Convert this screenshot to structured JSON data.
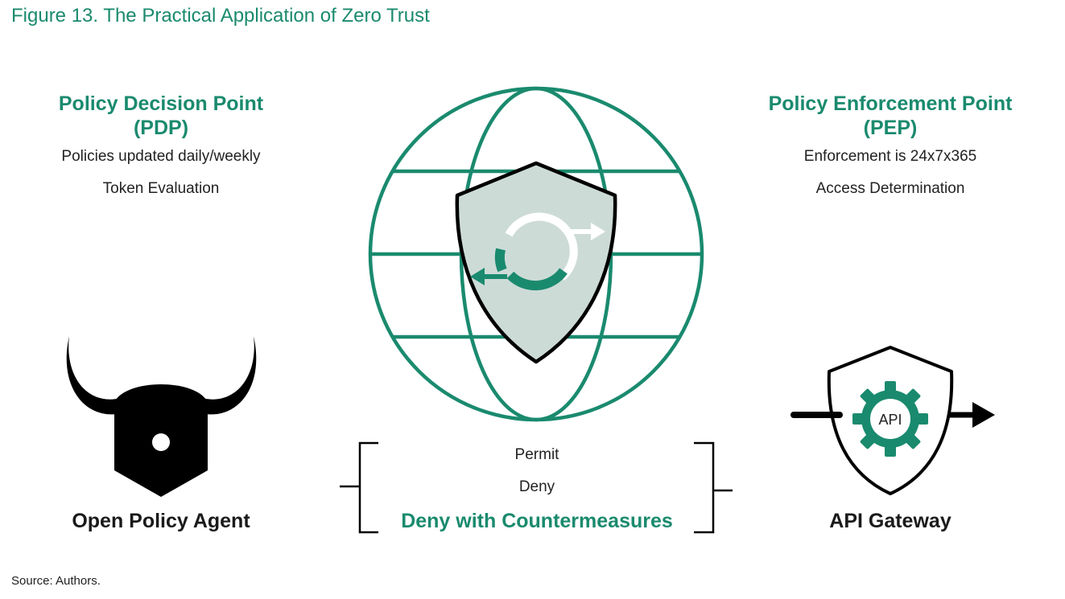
{
  "title": "Figure 13. The Practical Application of Zero Trust",
  "pdp": {
    "heading_line1": "Policy Decision Point",
    "heading_line2": "(PDP)",
    "detail1": "Policies updated daily/weekly",
    "detail2": "Token Evaluation",
    "tool": "Open Policy Agent",
    "icon": "bull-horns-icon"
  },
  "pep": {
    "heading_line1": "Policy Enforcement Point",
    "heading_line2": "(PEP)",
    "detail1": "Enforcement is 24x7x365",
    "detail2": "Access Determination",
    "tool": "API Gateway",
    "icon": "shield-gear-icon",
    "gear_label": "API"
  },
  "center": {
    "icon": "globe-shield-icon",
    "outcomes": [
      "Permit",
      "Deny"
    ],
    "highlight_outcome": "Deny with Countermeasures"
  },
  "source": "Source: Authors.",
  "colors": {
    "accent": "#1a8a6e",
    "shield_fill": "#cddbd7",
    "text": "#222222",
    "black": "#000000"
  }
}
